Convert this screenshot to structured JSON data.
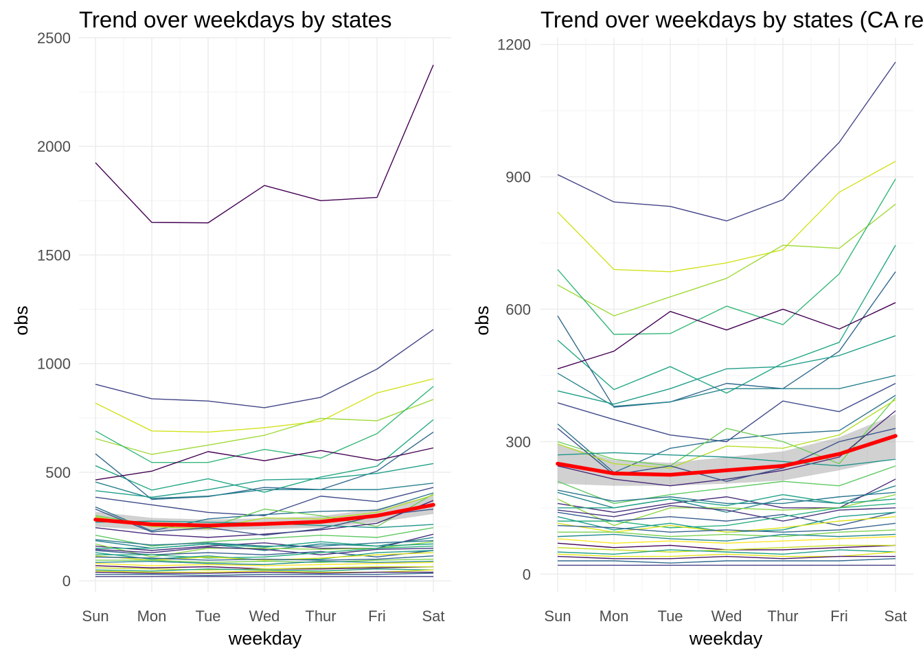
{
  "chart_data": [
    {
      "type": "line",
      "title": "Trend over weekdays by states",
      "xlabel": "weekday",
      "ylabel": "obs",
      "categories": [
        "Sun",
        "Mon",
        "Tue",
        "Wed",
        "Thur",
        "Fri",
        "Sat"
      ],
      "ylim": [
        -50,
        2500
      ],
      "yticks": [
        0,
        500,
        1000,
        1500,
        2000,
        2500
      ],
      "grid": true,
      "legend": "none",
      "series": [
        {
          "color": "#440154",
          "values": [
            1925,
            1650,
            1648,
            1820,
            1750,
            1765,
            2375
          ]
        },
        {
          "color": "#414487",
          "values": [
            905,
            838,
            828,
            797,
            845,
            975,
            1157
          ]
        },
        {
          "color": "#d2e21b",
          "values": [
            818,
            690,
            685,
            705,
            735,
            865,
            930
          ]
        },
        {
          "color": "#a0da39",
          "values": [
            655,
            582,
            625,
            670,
            748,
            737,
            835
          ]
        },
        {
          "color": "#35b779",
          "values": [
            690,
            545,
            545,
            605,
            565,
            678,
            895
          ]
        },
        {
          "color": "#22a884",
          "values": [
            530,
            418,
            470,
            408,
            478,
            528,
            742
          ]
        },
        {
          "color": "#31688e",
          "values": [
            585,
            375,
            388,
            430,
            420,
            505,
            685
          ]
        },
        {
          "color": "#440154",
          "values": [
            465,
            505,
            595,
            553,
            600,
            555,
            612
          ]
        },
        {
          "color": "#3e4a89",
          "values": [
            385,
            350,
            315,
            300,
            390,
            365,
            430
          ]
        },
        {
          "color": "#26828e",
          "values": [
            455,
            380,
            390,
            420,
            420,
            420,
            450
          ]
        },
        {
          "color": "#1f9e89",
          "values": [
            415,
            385,
            420,
            465,
            470,
            495,
            540
          ]
        },
        {
          "color": "#2c728e",
          "values": [
            340,
            230,
            285,
            305,
            320,
            325,
            405
          ]
        },
        {
          "color": "#6ece58",
          "values": [
            300,
            260,
            245,
            330,
            300,
            250,
            400
          ]
        },
        {
          "color": "#b5de2b",
          "values": [
            295,
            250,
            240,
            290,
            285,
            315,
            395
          ]
        },
        {
          "color": "#482878",
          "values": [
            245,
            215,
            200,
            215,
            235,
            265,
            370
          ]
        },
        {
          "color": "#3b528b",
          "values": [
            330,
            225,
            245,
            210,
            240,
            300,
            330
          ]
        },
        {
          "color": "#1f968b",
          "values": [
            270,
            275,
            270,
            265,
            255,
            245,
            260
          ]
        },
        {
          "color": "#5ec962",
          "values": [
            210,
            160,
            180,
            195,
            210,
            200,
            245
          ]
        },
        {
          "color": "#25858e",
          "values": [
            185,
            150,
            170,
            140,
            170,
            160,
            200
          ]
        },
        {
          "color": "#472d7b",
          "values": [
            160,
            140,
            160,
            175,
            150,
            150,
            215
          ]
        },
        {
          "color": "#2a788e",
          "values": [
            190,
            165,
            175,
            160,
            160,
            175,
            185
          ]
        },
        {
          "color": "#8fd744",
          "values": [
            170,
            110,
            150,
            150,
            145,
            150,
            180
          ]
        },
        {
          "color": "#20a486",
          "values": [
            150,
            150,
            170,
            155,
            180,
            160,
            170
          ]
        },
        {
          "color": "#46327e",
          "values": [
            145,
            130,
            155,
            145,
            120,
            145,
            150
          ]
        },
        {
          "color": "#365c8d",
          "values": [
            140,
            120,
            130,
            120,
            135,
            110,
            140
          ]
        },
        {
          "color": "#29af7f",
          "values": [
            120,
            120,
            105,
            110,
            130,
            150,
            160
          ]
        },
        {
          "color": "#1e9b8a",
          "values": [
            130,
            100,
            115,
            95,
            100,
            130,
            140
          ]
        },
        {
          "color": "#dde318",
          "values": [
            115,
            95,
            110,
            95,
            105,
            120,
            130
          ]
        },
        {
          "color": "#33638d",
          "values": [
            110,
            105,
            95,
            100,
            95,
            100,
            115
          ]
        },
        {
          "color": "#7ad151",
          "values": [
            95,
            95,
            85,
            90,
            85,
            95,
            100
          ]
        },
        {
          "color": "#23898e",
          "values": [
            85,
            90,
            80,
            75,
            90,
            85,
            90
          ]
        },
        {
          "color": "#fde725",
          "values": [
            80,
            70,
            75,
            70,
            75,
            80,
            85
          ]
        },
        {
          "color": "#450559",
          "values": [
            70,
            60,
            65,
            55,
            55,
            60,
            65
          ]
        },
        {
          "color": "#c8e020",
          "values": [
            60,
            55,
            50,
            55,
            60,
            65,
            65
          ]
        },
        {
          "color": "#1fa187",
          "values": [
            50,
            45,
            55,
            50,
            45,
            55,
            50
          ]
        },
        {
          "color": "#e5e419",
          "values": [
            45,
            40,
            40,
            45,
            40,
            40,
            50
          ]
        },
        {
          "color": "#481b6d",
          "values": [
            40,
            35,
            35,
            40,
            35,
            40,
            40
          ]
        },
        {
          "color": "#306a8e",
          "values": [
            30,
            30,
            25,
            30,
            30,
            30,
            35
          ]
        },
        {
          "color": "#433e85",
          "values": [
            20,
            20,
            20,
            20,
            20,
            20,
            20
          ]
        }
      ],
      "trend": {
        "color": "#ff0000",
        "values": [
          282,
          260,
          255,
          262,
          272,
          300,
          350
        ],
        "band": [
          [
            250,
            318
          ],
          [
            232,
            290
          ],
          [
            233,
            282
          ],
          [
            238,
            288
          ],
          [
            245,
            298
          ],
          [
            270,
            332
          ],
          [
            308,
            392
          ]
        ]
      }
    },
    {
      "type": "line",
      "title": "Trend over weekdays by states (CA removed)",
      "xlabel": "weekday",
      "ylabel": "obs",
      "categories": [
        "Sun",
        "Mon",
        "Tue",
        "Wed",
        "Thur",
        "Fri",
        "Sat"
      ],
      "ylim": [
        -40,
        1215
      ],
      "yticks": [
        0,
        300,
        600,
        900,
        1200
      ],
      "grid": true,
      "legend": "none",
      "series": [
        {
          "color": "#414487",
          "values": [
            905,
            843,
            833,
            800,
            848,
            978,
            1160
          ]
        },
        {
          "color": "#d2e21b",
          "values": [
            820,
            690,
            685,
            705,
            735,
            865,
            935
          ]
        },
        {
          "color": "#a0da39",
          "values": [
            655,
            585,
            628,
            670,
            745,
            738,
            838
          ]
        },
        {
          "color": "#35b779",
          "values": [
            690,
            543,
            545,
            607,
            565,
            680,
            895
          ]
        },
        {
          "color": "#22a884",
          "values": [
            530,
            418,
            470,
            410,
            478,
            525,
            745
          ]
        },
        {
          "color": "#31688e",
          "values": [
            585,
            378,
            390,
            432,
            420,
            505,
            685
          ]
        },
        {
          "color": "#440154",
          "values": [
            465,
            505,
            595,
            553,
            600,
            555,
            615
          ]
        },
        {
          "color": "#3e4a89",
          "values": [
            388,
            350,
            315,
            300,
            392,
            368,
            432
          ]
        },
        {
          "color": "#26828e",
          "values": [
            455,
            380,
            390,
            420,
            420,
            420,
            450
          ]
        },
        {
          "color": "#1f9e89",
          "values": [
            415,
            385,
            420,
            465,
            470,
            495,
            540
          ]
        },
        {
          "color": "#2c728e",
          "values": [
            340,
            230,
            285,
            305,
            318,
            325,
            405
          ]
        },
        {
          "color": "#6ece58",
          "values": [
            300,
            260,
            245,
            330,
            300,
            250,
            400
          ]
        },
        {
          "color": "#b5de2b",
          "values": [
            295,
            250,
            240,
            290,
            285,
            315,
            395
          ]
        },
        {
          "color": "#482878",
          "values": [
            245,
            215,
            200,
            215,
            235,
            265,
            370
          ]
        },
        {
          "color": "#3b528b",
          "values": [
            330,
            225,
            245,
            210,
            240,
            300,
            330
          ]
        },
        {
          "color": "#1f968b",
          "values": [
            270,
            275,
            270,
            265,
            255,
            245,
            260
          ]
        },
        {
          "color": "#5ec962",
          "values": [
            210,
            160,
            180,
            195,
            210,
            200,
            245
          ]
        },
        {
          "color": "#25858e",
          "values": [
            185,
            150,
            170,
            140,
            170,
            160,
            200
          ]
        },
        {
          "color": "#472d7b",
          "values": [
            160,
            140,
            160,
            175,
            150,
            150,
            215
          ]
        },
        {
          "color": "#2a788e",
          "values": [
            190,
            165,
            175,
            160,
            160,
            175,
            185
          ]
        },
        {
          "color": "#8fd744",
          "values": [
            170,
            110,
            150,
            150,
            145,
            150,
            180
          ]
        },
        {
          "color": "#20a486",
          "values": [
            150,
            150,
            170,
            155,
            180,
            160,
            170
          ]
        },
        {
          "color": "#46327e",
          "values": [
            145,
            130,
            155,
            145,
            120,
            145,
            150
          ]
        },
        {
          "color": "#365c8d",
          "values": [
            140,
            120,
            130,
            120,
            135,
            110,
            140
          ]
        },
        {
          "color": "#29af7f",
          "values": [
            120,
            120,
            105,
            110,
            130,
            150,
            160
          ]
        },
        {
          "color": "#1e9b8a",
          "values": [
            130,
            100,
            115,
            95,
            100,
            130,
            140
          ]
        },
        {
          "color": "#dde318",
          "values": [
            115,
            95,
            110,
            95,
            105,
            120,
            130
          ]
        },
        {
          "color": "#33638d",
          "values": [
            110,
            105,
            95,
            100,
            95,
            100,
            115
          ]
        },
        {
          "color": "#7ad151",
          "values": [
            95,
            95,
            85,
            90,
            85,
            95,
            100
          ]
        },
        {
          "color": "#23898e",
          "values": [
            85,
            90,
            80,
            75,
            90,
            85,
            90
          ]
        },
        {
          "color": "#fde725",
          "values": [
            80,
            70,
            75,
            70,
            75,
            80,
            85
          ]
        },
        {
          "color": "#450559",
          "values": [
            70,
            60,
            65,
            55,
            55,
            60,
            65
          ]
        },
        {
          "color": "#c8e020",
          "values": [
            60,
            55,
            50,
            55,
            60,
            65,
            65
          ]
        },
        {
          "color": "#1fa187",
          "values": [
            50,
            45,
            55,
            50,
            45,
            55,
            50
          ]
        },
        {
          "color": "#e5e419",
          "values": [
            45,
            40,
            40,
            45,
            40,
            40,
            50
          ]
        },
        {
          "color": "#481b6d",
          "values": [
            40,
            35,
            35,
            40,
            35,
            40,
            40
          ]
        },
        {
          "color": "#306a8e",
          "values": [
            30,
            30,
            25,
            30,
            30,
            30,
            35
          ]
        },
        {
          "color": "#433e85",
          "values": [
            20,
            20,
            20,
            20,
            20,
            20,
            20
          ]
        }
      ],
      "trend": {
        "color": "#ff0000",
        "values": [
          250,
          228,
          225,
          235,
          245,
          272,
          313
        ],
        "band": [
          [
            205,
            295
          ],
          [
            200,
            258
          ],
          [
            200,
            252
          ],
          [
            205,
            265
          ],
          [
            212,
            278
          ],
          [
            235,
            310
          ],
          [
            262,
            362
          ]
        ]
      }
    }
  ]
}
